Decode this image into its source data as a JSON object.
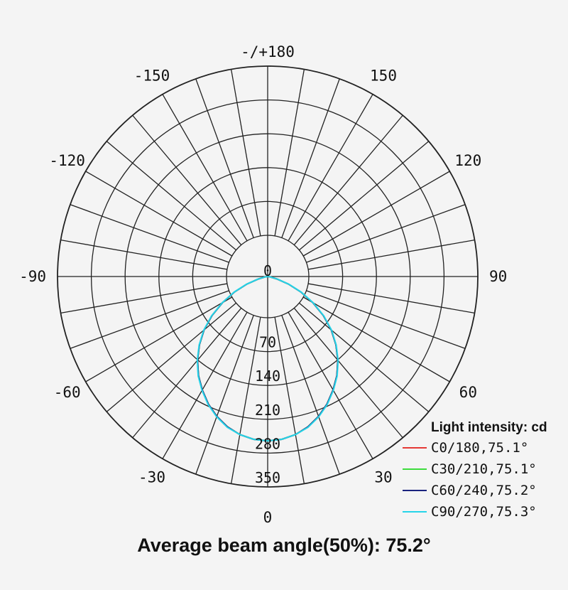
{
  "chart_data": {
    "type": "polar",
    "title": "",
    "angle_labels": [
      {
        "angle": 180,
        "text": "-/+180"
      },
      {
        "angle": -150,
        "text": "-150"
      },
      {
        "angle": 150,
        "text": "150"
      },
      {
        "angle": -120,
        "text": "-120"
      },
      {
        "angle": 120,
        "text": "120"
      },
      {
        "angle": -90,
        "text": "-90"
      },
      {
        "angle": 90,
        "text": "90"
      },
      {
        "angle": -60,
        "text": "-60"
      },
      {
        "angle": 60,
        "text": "60"
      },
      {
        "angle": -30,
        "text": "-30"
      },
      {
        "angle": 30,
        "text": "30"
      },
      {
        "angle": 0,
        "text": "0"
      }
    ],
    "radial_ticks": [
      0,
      70,
      140,
      210,
      280,
      350
    ],
    "radial_tick_labels": [
      "0",
      "70",
      "140",
      "210",
      "280",
      "350"
    ],
    "r_max": 350,
    "inner_ring_offset": 70,
    "spoke_step_deg": 10,
    "angles_deg": [
      0,
      5,
      10,
      15,
      20,
      25,
      30,
      35,
      40,
      45,
      50,
      55,
      60,
      65,
      70,
      75,
      80,
      85,
      90
    ],
    "series": [
      {
        "name": "C0/180,75.1°",
        "color": "#e53935",
        "values": [
          340,
          338,
          332,
          322,
          308,
          291,
          271,
          250,
          226,
          200,
          172,
          141,
          108,
          76,
          46,
          20,
          6,
          1,
          0
        ]
      },
      {
        "name": "C30/210,75.1°",
        "color": "#3ddc3d",
        "values": [
          340,
          338,
          332,
          322,
          308,
          291,
          271,
          250,
          226,
          200,
          172,
          141,
          108,
          76,
          46,
          20,
          6,
          1,
          0
        ]
      },
      {
        "name": "C60/240,75.2°",
        "color": "#1a237e",
        "values": [
          340,
          338,
          332,
          322,
          308,
          291,
          271,
          250,
          226,
          200,
          172,
          141,
          108,
          76,
          46,
          20,
          6,
          1,
          0
        ]
      },
      {
        "name": "C90/270,75.3°",
        "color": "#26d4e8",
        "values": [
          340,
          338,
          332,
          323,
          309,
          292,
          272,
          251,
          227,
          201,
          173,
          142,
          109,
          77,
          47,
          21,
          6,
          1,
          0
        ]
      }
    ],
    "legend": {
      "title": "Light intensity: cd",
      "placement": "bottom-right"
    },
    "grid": true
  },
  "caption": "Average beam angle(50%): 75.2°"
}
